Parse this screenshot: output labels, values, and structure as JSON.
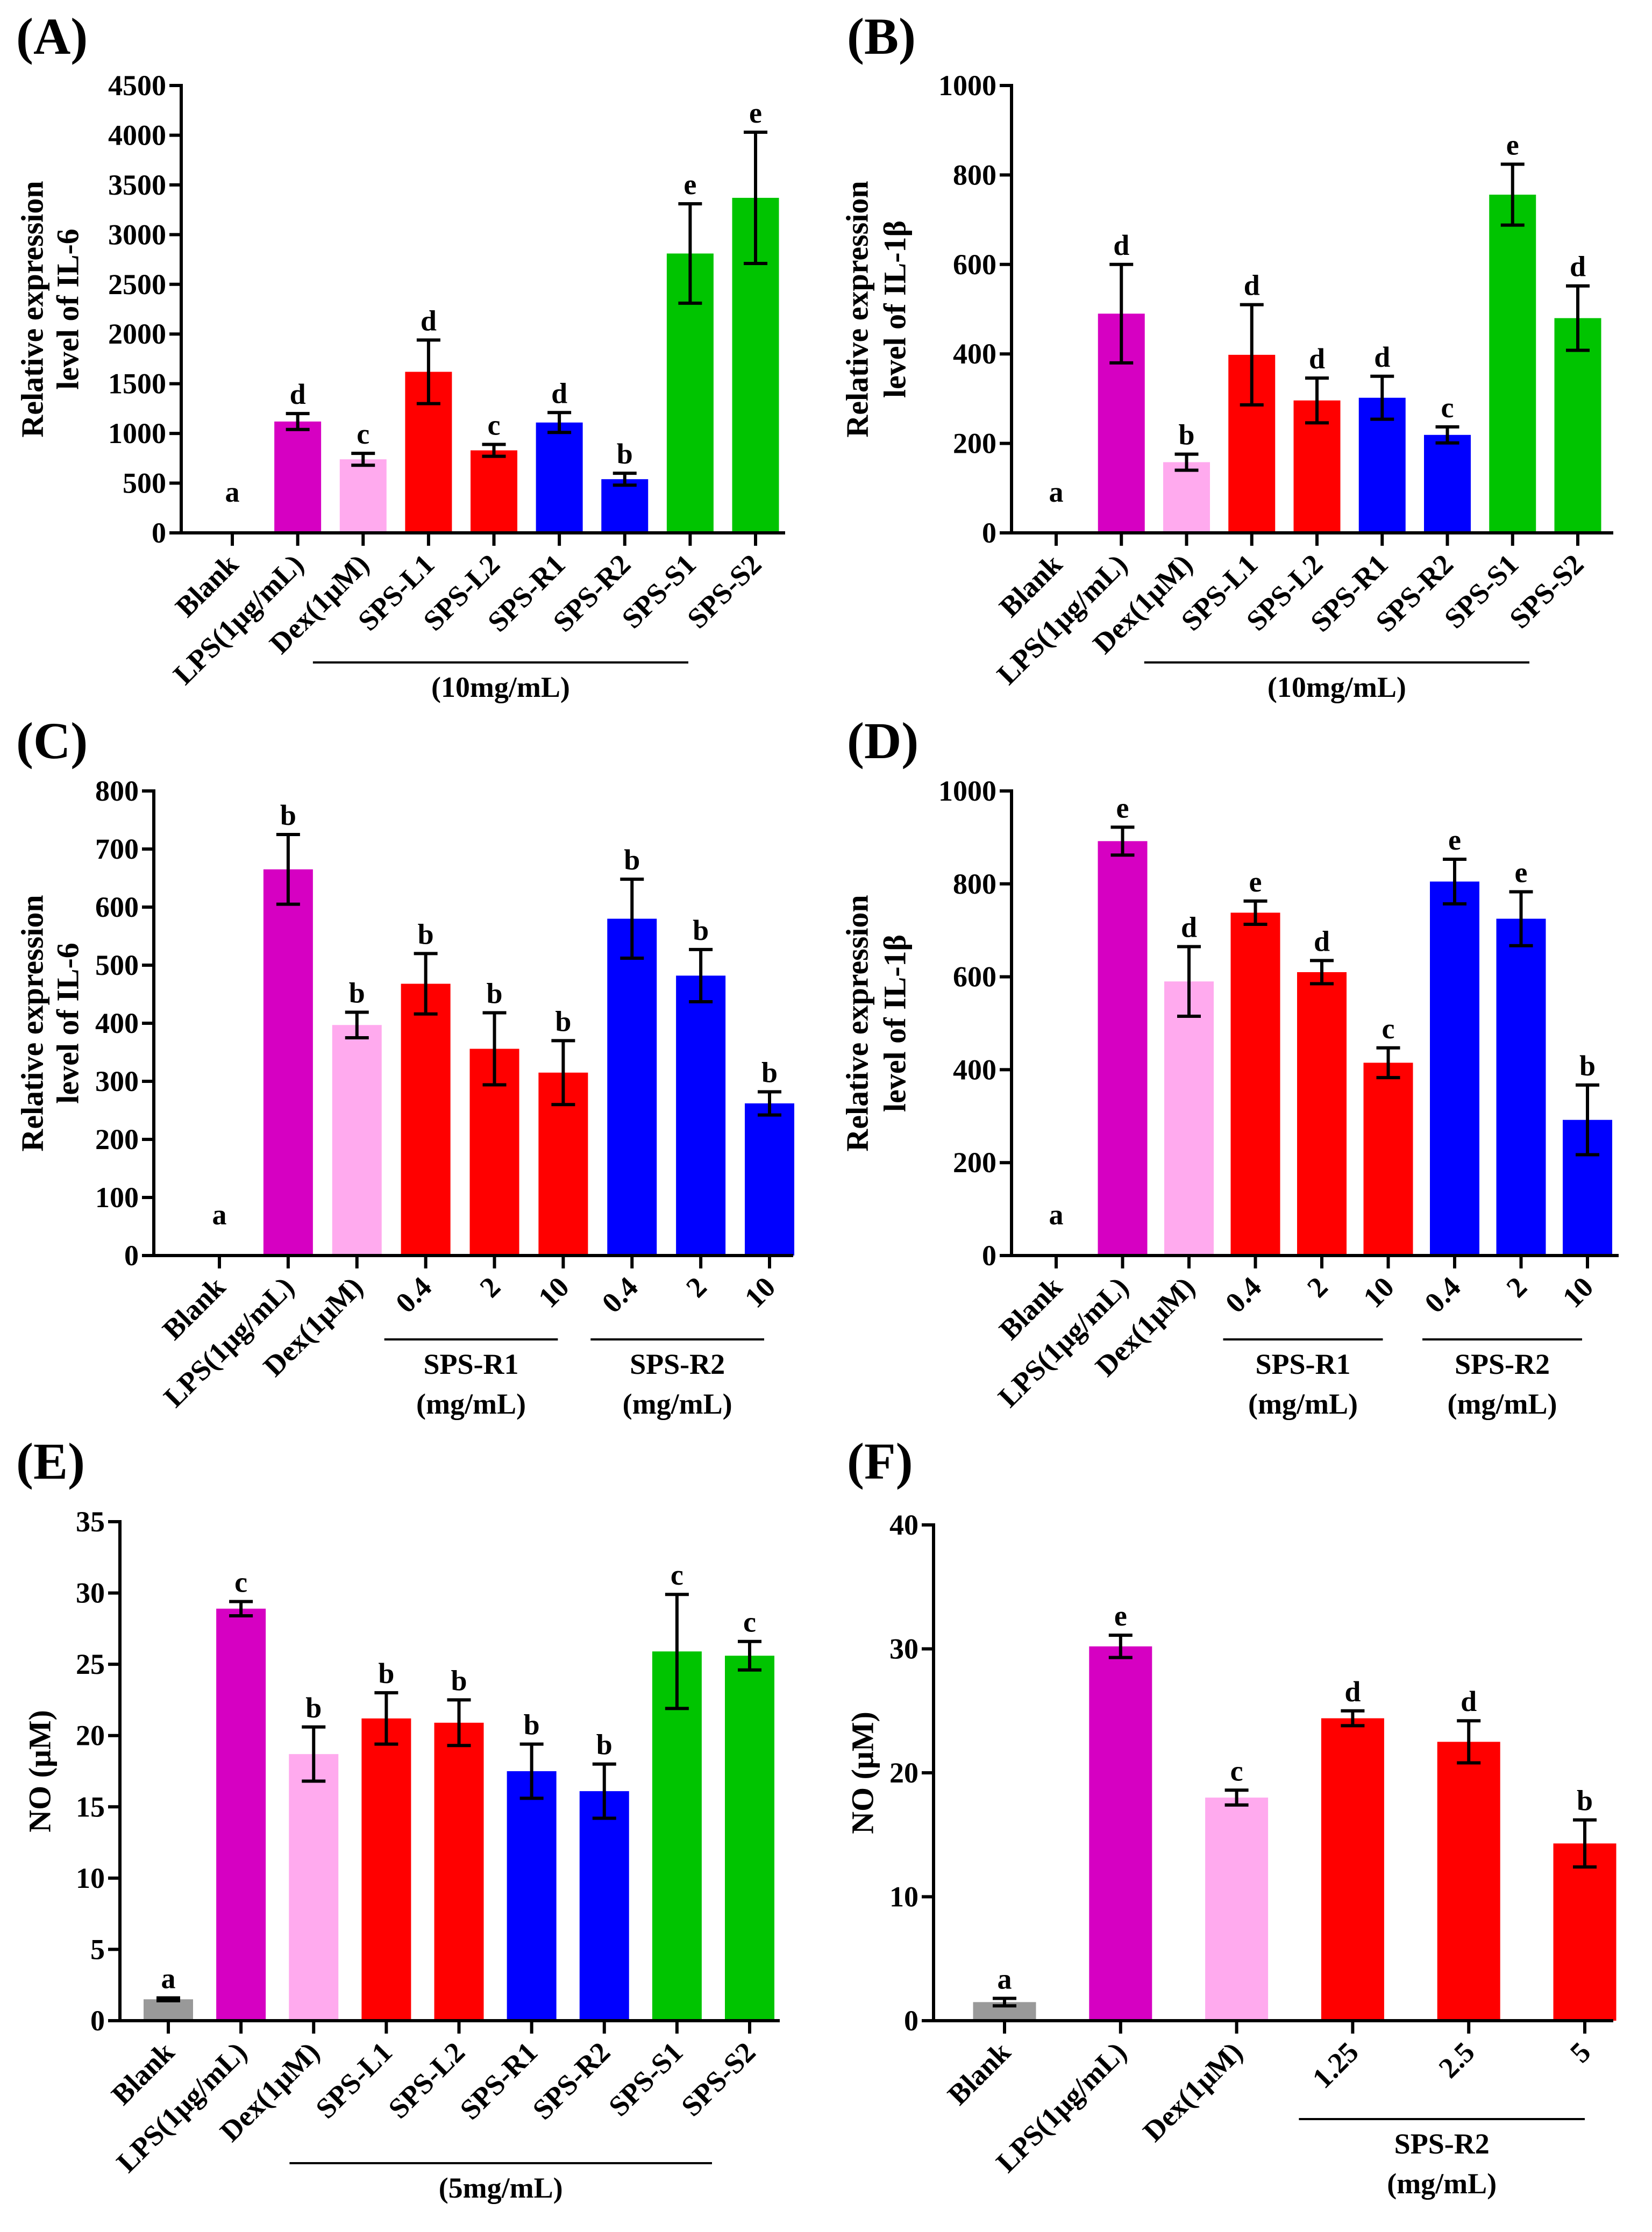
{
  "chart_data": [
    {
      "panel": "(A)",
      "type": "bar",
      "ylabel": [
        "Relative expression",
        "level of IL-6"
      ],
      "ylim": [
        0,
        4500
      ],
      "yticks": [
        0,
        500,
        1000,
        1500,
        2000,
        2500,
        3000,
        3500,
        4000,
        4500
      ],
      "categories": [
        "Blank",
        "LPS(1μg/mL)",
        "Dex(1μM)",
        "SPS-L1",
        "SPS-L2",
        "SPS-R1",
        "SPS-R2",
        "SPS-S1",
        "SPS-S2"
      ],
      "values": [
        0,
        1120,
        740,
        1620,
        830,
        1110,
        540,
        2810,
        3370
      ],
      "errors": [
        0,
        80,
        60,
        320,
        60,
        100,
        60,
        500,
        660
      ],
      "letters": [
        "a",
        "d",
        "c",
        "d",
        "c",
        "d",
        "b",
        "e",
        "e"
      ],
      "colors": [
        "#999999",
        "#D600C2",
        "#FFAAEE",
        "#FF0000",
        "#FF0000",
        "#0000FF",
        "#0000FF",
        "#00C400",
        "#00C400"
      ],
      "groups": [
        {
          "lines": [
            "(10mg/mL)"
          ],
          "start": 3,
          "end": 8
        }
      ]
    },
    {
      "panel": "(B)",
      "type": "bar",
      "ylabel": [
        "Relative expression",
        "level of IL-1β"
      ],
      "ylim": [
        0,
        1000
      ],
      "yticks": [
        0,
        200,
        400,
        600,
        800,
        1000
      ],
      "categories": [
        "Blank",
        "LPS(1μg/mL)",
        "Dex(1μM)",
        "SPS-L1",
        "SPS-L2",
        "SPS-R1",
        "SPS-R2",
        "SPS-S1",
        "SPS-S2"
      ],
      "values": [
        0,
        490,
        158,
        398,
        296,
        302,
        219,
        756,
        480
      ],
      "errors": [
        0,
        110,
        18,
        112,
        50,
        48,
        18,
        68,
        72
      ],
      "letters": [
        "a",
        "d",
        "b",
        "d",
        "d",
        "d",
        "c",
        "e",
        "d"
      ],
      "colors": [
        "#999999",
        "#D600C2",
        "#FFAAEE",
        "#FF0000",
        "#FF0000",
        "#0000FF",
        "#0000FF",
        "#00C400",
        "#00C400"
      ],
      "groups": [
        {
          "lines": [
            "(10mg/mL)"
          ],
          "start": 3,
          "end": 8
        }
      ]
    },
    {
      "panel": "(C)",
      "type": "bar",
      "ylabel": [
        "Relative expression",
        "level of IL-6"
      ],
      "ylim": [
        0,
        800
      ],
      "yticks": [
        0,
        100,
        200,
        300,
        400,
        500,
        600,
        700,
        800
      ],
      "categories": [
        "Blank",
        "LPS(1μg/mL)",
        "Dex(1μM)",
        "0.4",
        "2",
        "10",
        "0.4",
        "2",
        "10"
      ],
      "values": [
        0,
        665,
        397,
        468,
        356,
        315,
        580,
        482,
        262
      ],
      "errors": [
        0,
        60,
        22,
        52,
        62,
        55,
        68,
        45,
        20
      ],
      "letters": [
        "a",
        "b",
        "b",
        "b",
        "b",
        "b",
        "b",
        "b",
        "b"
      ],
      "colors": [
        "#999999",
        "#D600C2",
        "#FFAAEE",
        "#FF0000",
        "#FF0000",
        "#FF0000",
        "#0000FF",
        "#0000FF",
        "#0000FF"
      ],
      "groups": [
        {
          "lines": [
            "SPS-R1",
            "(mg/mL)"
          ],
          "start": 3,
          "end": 5
        },
        {
          "lines": [
            "SPS-R2",
            "(mg/mL)"
          ],
          "start": 6,
          "end": 8
        }
      ]
    },
    {
      "panel": "(D)",
      "type": "bar",
      "ylabel": [
        "Relative expression",
        "level of IL-1β"
      ],
      "ylim": [
        0,
        1000
      ],
      "yticks": [
        0,
        200,
        400,
        600,
        800,
        1000
      ],
      "categories": [
        "Blank",
        "LPS(1μg/mL)",
        "Dex(1μM)",
        "0.4",
        "2",
        "10",
        "0.4",
        "2",
        "10"
      ],
      "values": [
        0,
        892,
        590,
        738,
        610,
        415,
        805,
        725,
        292
      ],
      "errors": [
        0,
        30,
        75,
        25,
        25,
        32,
        48,
        58,
        75
      ],
      "letters": [
        "a",
        "e",
        "d",
        "e",
        "d",
        "c",
        "e",
        "e",
        "b"
      ],
      "colors": [
        "#999999",
        "#D600C2",
        "#FFAAEE",
        "#FF0000",
        "#FF0000",
        "#FF0000",
        "#0000FF",
        "#0000FF",
        "#0000FF"
      ],
      "groups": [
        {
          "lines": [
            "SPS-R1",
            "(mg/mL)"
          ],
          "start": 3,
          "end": 5
        },
        {
          "lines": [
            "SPS-R2",
            "(mg/mL)"
          ],
          "start": 6,
          "end": 8
        }
      ]
    },
    {
      "panel": "(E)",
      "type": "bar",
      "ylabel": [
        "NO (μM)"
      ],
      "ylim": [
        0,
        35
      ],
      "yticks": [
        0,
        5,
        10,
        15,
        20,
        25,
        30,
        35
      ],
      "categories": [
        "Blank",
        "LPS(1μg/mL)",
        "Dex(1μM)",
        "SPS-L1",
        "SPS-L2",
        "SPS-R1",
        "SPS-R2",
        "SPS-S1",
        "SPS-S2"
      ],
      "values": [
        1.5,
        28.9,
        18.7,
        21.2,
        20.9,
        17.5,
        16.1,
        25.9,
        25.6
      ],
      "errors": [
        0.1,
        0.5,
        1.9,
        1.8,
        1.6,
        1.9,
        1.9,
        4.0,
        1.0
      ],
      "letters": [
        "a",
        "c",
        "b",
        "b",
        "b",
        "b",
        "b",
        "c",
        "c"
      ],
      "colors": [
        "#999999",
        "#D600C2",
        "#FFAAEE",
        "#FF0000",
        "#FF0000",
        "#0000FF",
        "#0000FF",
        "#00C400",
        "#00C400"
      ],
      "groups": [
        {
          "lines": [
            "(5mg/mL)"
          ],
          "start": 3,
          "end": 8
        }
      ]
    },
    {
      "panel": "(F)",
      "type": "bar",
      "ylabel": [
        "NO (μM)"
      ],
      "ylim": [
        0,
        40
      ],
      "yticks": [
        0,
        10,
        20,
        30,
        40
      ],
      "categories": [
        "Blank",
        "LPS(1μg/mL)",
        "Dex(1μM)",
        "1.25",
        "2.5",
        "5"
      ],
      "values": [
        1.5,
        30.2,
        18.0,
        24.4,
        22.5,
        14.3
      ],
      "errors": [
        0.3,
        0.9,
        0.6,
        0.6,
        1.7,
        1.9
      ],
      "letters": [
        "a",
        "e",
        "c",
        "d",
        "d",
        "b"
      ],
      "colors": [
        "#999999",
        "#D600C2",
        "#FFAAEE",
        "#FF0000",
        "#FF0000",
        "#FF0000"
      ],
      "groups": [
        {
          "lines": [
            "SPS-R2",
            "(mg/mL)"
          ],
          "start": 3,
          "end": 5
        }
      ]
    }
  ]
}
